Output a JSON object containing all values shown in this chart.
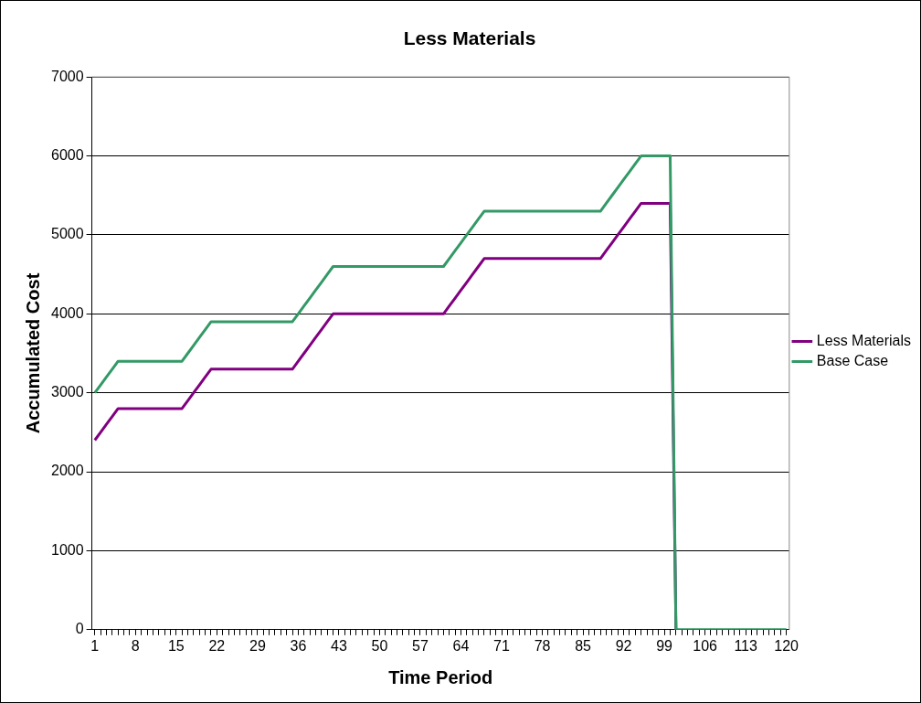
{
  "chart_data": {
    "type": "line",
    "title": "Less Materials",
    "xlabel": "Time Period",
    "ylabel": "Accumulated Cost",
    "categories": [
      "1",
      null,
      null,
      null,
      null,
      null,
      null,
      "8",
      null,
      null,
      null,
      null,
      null,
      null,
      "15",
      null,
      null,
      null,
      null,
      null,
      null,
      "22",
      null,
      null,
      null,
      null,
      null,
      null,
      "29",
      null,
      null,
      null,
      null,
      null,
      null,
      "36",
      null,
      null,
      null,
      null,
      null,
      null,
      "43",
      null,
      null,
      null,
      null,
      null,
      null,
      "50",
      null,
      null,
      null,
      null,
      null,
      null,
      "57",
      null,
      null,
      null,
      null,
      null,
      null,
      "64",
      null,
      null,
      null,
      null,
      null,
      null,
      "71",
      null,
      null,
      null,
      null,
      null,
      null,
      "78",
      null,
      null,
      null,
      null,
      null,
      null,
      "85",
      null,
      null,
      null,
      null,
      null,
      null,
      "92",
      null,
      null,
      null,
      null,
      null,
      null,
      "99",
      null,
      null,
      null,
      null,
      null,
      null,
      "106",
      null,
      null,
      null,
      null,
      null,
      null,
      "113",
      null,
      null,
      null,
      null,
      null,
      null,
      "120"
    ],
    "series": [
      {
        "name": "Less Materials",
        "color": "#800080",
        "values": [
          2400,
          2500,
          2600,
          2700,
          2800,
          2800,
          2800,
          2800,
          2800,
          2800,
          2800,
          2800,
          2800,
          2800,
          2800,
          2800,
          2900,
          3000,
          3100,
          3200,
          3300,
          3300,
          3300,
          3300,
          3300,
          3300,
          3300,
          3300,
          3300,
          3300,
          3300,
          3300,
          3300,
          3300,
          3300,
          3400,
          3500,
          3600,
          3700,
          3800,
          3900,
          4000,
          4000,
          4000,
          4000,
          4000,
          4000,
          4000,
          4000,
          4000,
          4000,
          4000,
          4000,
          4000,
          4000,
          4000,
          4000,
          4000,
          4000,
          4000,
          4000,
          4100,
          4200,
          4300,
          4400,
          4500,
          4600,
          4700,
          4700,
          4700,
          4700,
          4700,
          4700,
          4700,
          4700,
          4700,
          4700,
          4700,
          4700,
          4700,
          4700,
          4700,
          4700,
          4700,
          4700,
          4700,
          4700,
          4700,
          4800,
          4900,
          5000,
          5100,
          5200,
          5300,
          5400,
          5400,
          5400,
          5400,
          5400,
          5400,
          0,
          null,
          null,
          null,
          null,
          null,
          null,
          null,
          null,
          null,
          null,
          null,
          null,
          null,
          null,
          null,
          null,
          null,
          null,
          null
        ]
      },
      {
        "name": "Base Case",
        "color": "#339966",
        "values": [
          3000,
          3100,
          3200,
          3300,
          3400,
          3400,
          3400,
          3400,
          3400,
          3400,
          3400,
          3400,
          3400,
          3400,
          3400,
          3400,
          3500,
          3600,
          3700,
          3800,
          3900,
          3900,
          3900,
          3900,
          3900,
          3900,
          3900,
          3900,
          3900,
          3900,
          3900,
          3900,
          3900,
          3900,
          3900,
          4000,
          4100,
          4200,
          4300,
          4400,
          4500,
          4600,
          4600,
          4600,
          4600,
          4600,
          4600,
          4600,
          4600,
          4600,
          4600,
          4600,
          4600,
          4600,
          4600,
          4600,
          4600,
          4600,
          4600,
          4600,
          4600,
          4700,
          4800,
          4900,
          5000,
          5100,
          5200,
          5300,
          5300,
          5300,
          5300,
          5300,
          5300,
          5300,
          5300,
          5300,
          5300,
          5300,
          5300,
          5300,
          5300,
          5300,
          5300,
          5300,
          5300,
          5300,
          5300,
          5300,
          5400,
          5500,
          5600,
          5700,
          5800,
          5900,
          6000,
          6000,
          6000,
          6000,
          6000,
          6000,
          0,
          0,
          0,
          0,
          0,
          0,
          0,
          0,
          0,
          0,
          0,
          0,
          0,
          0,
          0,
          0,
          0,
          0,
          0,
          0
        ]
      }
    ],
    "ylim": [
      0,
      7000
    ],
    "yticks": [
      0,
      1000,
      2000,
      3000,
      4000,
      5000,
      6000,
      7000
    ],
    "grid": "y",
    "legend": "right",
    "marker": "none",
    "line_style": "solid"
  }
}
